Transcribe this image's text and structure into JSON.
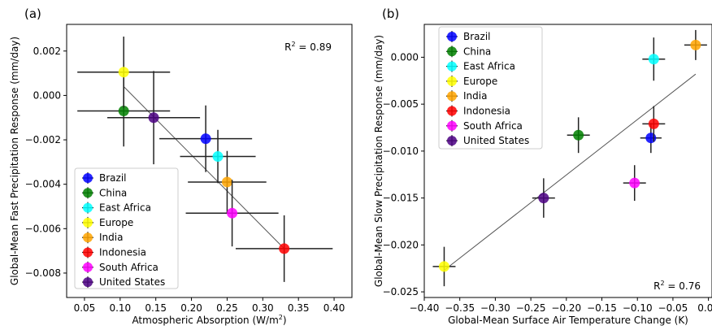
{
  "chart_data": [
    {
      "type": "scatter",
      "panel_label": "(a)",
      "xlabel": "Atmospheric Absorption (W/m",
      "xlabel_sup": "2",
      "xlabel_end": ")",
      "ylabel": "Global-Mean Fast Precipitation Response (mm/day)",
      "xlim": [
        0.025,
        0.425
      ],
      "ylim": [
        -0.0091,
        0.0032
      ],
      "x_ticks": [
        0.05,
        0.1,
        0.15,
        0.2,
        0.25,
        0.3,
        0.35,
        0.4
      ],
      "x_tick_labels": [
        "0.05",
        "0.10",
        "0.15",
        "0.20",
        "0.25",
        "0.30",
        "0.35",
        "0.40"
      ],
      "y_ticks": [
        0.002,
        0.0,
        -0.002,
        -0.004,
        -0.006,
        -0.008
      ],
      "y_tick_labels": [
        "0.002",
        "0.000",
        "−0.002",
        "−0.004",
        "−0.006",
        "−0.008"
      ],
      "annotation_prefix": "R",
      "annotation_sup": "2",
      "annotation_value": " = 0.89",
      "annotation_position": "top-right",
      "legend_position": "bottom-left",
      "fit_line": {
        "x": [
          0.105,
          0.33
        ],
        "y": [
          0.0004,
          -0.0069
        ]
      },
      "series": [
        {
          "name": "Brazil",
          "color": "#0000ff",
          "x": 0.22,
          "y": -0.00195,
          "xerr": 0.065,
          "yerr": 0.0015
        },
        {
          "name": "China",
          "color": "#008000",
          "x": 0.105,
          "y": -0.0007,
          "xerr": 0.065,
          "yerr": 0.0016
        },
        {
          "name": "East Africa",
          "color": "#00ffff",
          "x": 0.237,
          "y": -0.00275,
          "xerr": 0.053,
          "yerr": 0.0012
        },
        {
          "name": "Europe",
          "color": "#ffff00",
          "x": 0.105,
          "y": 0.00105,
          "xerr": 0.065,
          "yerr": 0.0016
        },
        {
          "name": "India",
          "color": "#ffa500",
          "x": 0.25,
          "y": -0.0039,
          "xerr": 0.055,
          "yerr": 0.0014
        },
        {
          "name": "Indonesia",
          "color": "#ff0000",
          "x": 0.33,
          "y": -0.0069,
          "xerr": 0.068,
          "yerr": 0.0015
        },
        {
          "name": "South Africa",
          "color": "#ff00ff",
          "x": 0.257,
          "y": -0.0053,
          "xerr": 0.065,
          "yerr": 0.0015
        },
        {
          "name": "United States",
          "color": "#4b0082",
          "x": 0.147,
          "y": -0.001,
          "xerr": 0.065,
          "yerr": 0.0021
        }
      ]
    },
    {
      "type": "scatter",
      "panel_label": "(b)",
      "xlabel": "Global-Mean Surface Air Temperature Change (K)",
      "ylabel": "Global-Mean Slow Precipitation Response (mm/day)",
      "xlim": [
        -0.4,
        0.005
      ],
      "ylim": [
        -0.0256,
        0.0035
      ],
      "x_ticks": [
        -0.4,
        -0.35,
        -0.3,
        -0.25,
        -0.2,
        -0.15,
        -0.1,
        -0.05,
        0.0
      ],
      "x_tick_labels": [
        "−0.40",
        "−0.35",
        "−0.30",
        "−0.25",
        "−0.20",
        "−0.15",
        "−0.10",
        "−0.05",
        "0.00"
      ],
      "y_ticks": [
        0.0,
        -0.005,
        -0.01,
        -0.015,
        -0.02,
        -0.025
      ],
      "y_tick_labels": [
        "0.000",
        "−0.005",
        "−0.010",
        "−0.015",
        "−0.020",
        "−0.025"
      ],
      "annotation_prefix": "R",
      "annotation_sup": "2",
      "annotation_value": " = 0.76",
      "annotation_position": "bottom-right",
      "legend_position": "top-left",
      "fit_line": {
        "x": [
          -0.372,
          -0.018
        ],
        "y": [
          -0.0227,
          -0.0018
        ]
      },
      "series": [
        {
          "name": "Brazil",
          "color": "#0000ff",
          "x": -0.081,
          "y": -0.0086,
          "xerr": 0.015,
          "yerr": 0.0016
        },
        {
          "name": "China",
          "color": "#008000",
          "x": -0.183,
          "y": -0.0083,
          "xerr": 0.016,
          "yerr": 0.0019
        },
        {
          "name": "East Africa",
          "color": "#00ffff",
          "x": -0.077,
          "y": -0.0002,
          "xerr": 0.016,
          "yerr": 0.0023
        },
        {
          "name": "Europe",
          "color": "#ffff00",
          "x": -0.372,
          "y": -0.0223,
          "xerr": 0.016,
          "yerr": 0.0021
        },
        {
          "name": "India",
          "color": "#ffa500",
          "x": -0.018,
          "y": 0.0013,
          "xerr": 0.016,
          "yerr": 0.0016
        },
        {
          "name": "Indonesia",
          "color": "#ff0000",
          "x": -0.077,
          "y": -0.0071,
          "xerr": 0.016,
          "yerr": 0.0019
        },
        {
          "name": "South Africa",
          "color": "#ff00ff",
          "x": -0.104,
          "y": -0.0134,
          "xerr": 0.016,
          "yerr": 0.0019
        },
        {
          "name": "United States",
          "color": "#4b0082",
          "x": -0.232,
          "y": -0.015,
          "xerr": 0.016,
          "yerr": 0.0021
        }
      ]
    }
  ]
}
